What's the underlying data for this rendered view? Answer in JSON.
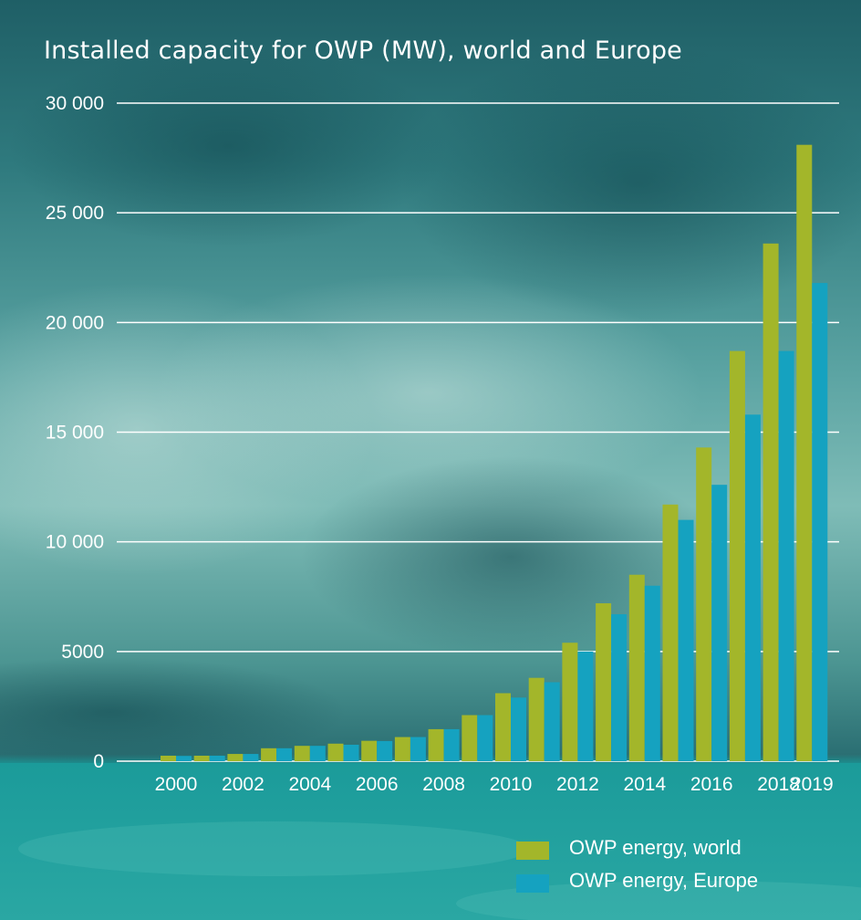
{
  "chart_data": {
    "type": "bar",
    "title": "Installed capacity for OWP (MW), world and Europe",
    "categories": [
      "2000",
      "2001",
      "2002",
      "2003",
      "2004",
      "2005",
      "2006",
      "2007",
      "2008",
      "2009",
      "2010",
      "2011",
      "2012",
      "2013",
      "2014",
      "2015",
      "2016",
      "2017",
      "2018",
      "2019"
    ],
    "x_tick_labels": [
      {
        "category": "2000",
        "label": "2000"
      },
      {
        "category": "2002",
        "label": "2002"
      },
      {
        "category": "2004",
        "label": "2004"
      },
      {
        "category": "2006",
        "label": "2006"
      },
      {
        "category": "2008",
        "label": "2008"
      },
      {
        "category": "2010",
        "label": "2010"
      },
      {
        "category": "2012",
        "label": "2012"
      },
      {
        "category": "2014",
        "label": "2014"
      },
      {
        "category": "2016",
        "label": "2016"
      },
      {
        "category": "2018",
        "label": "2018"
      },
      {
        "category": "2019",
        "label": "2019"
      }
    ],
    "y_ticks": [
      {
        "value": 0,
        "label": "0"
      },
      {
        "value": 5000,
        "label": "5000"
      },
      {
        "value": 10000,
        "label": "10 000"
      },
      {
        "value": 15000,
        "label": "15 000"
      },
      {
        "value": 20000,
        "label": "20 000"
      },
      {
        "value": 25000,
        "label": "25 000"
      },
      {
        "value": 30000,
        "label": "30 000"
      }
    ],
    "ylim": [
      0,
      30000
    ],
    "grid": true,
    "legend_position": "bottom-right",
    "series": [
      {
        "name": "OWP energy, world",
        "color": "#a3b62a",
        "values": [
          250,
          250,
          330,
          590,
          700,
          800,
          930,
          1100,
          1460,
          2100,
          3100,
          3800,
          5400,
          7200,
          8500,
          11700,
          14300,
          18700,
          23600,
          28100
        ]
      },
      {
        "name": "OWP energy, Europe",
        "color": "#15a2c0",
        "values": [
          240,
          250,
          330,
          590,
          700,
          750,
          920,
          1100,
          1460,
          2100,
          2900,
          3600,
          5000,
          6700,
          8000,
          11000,
          12600,
          15800,
          18700,
          21800
        ]
      }
    ]
  }
}
